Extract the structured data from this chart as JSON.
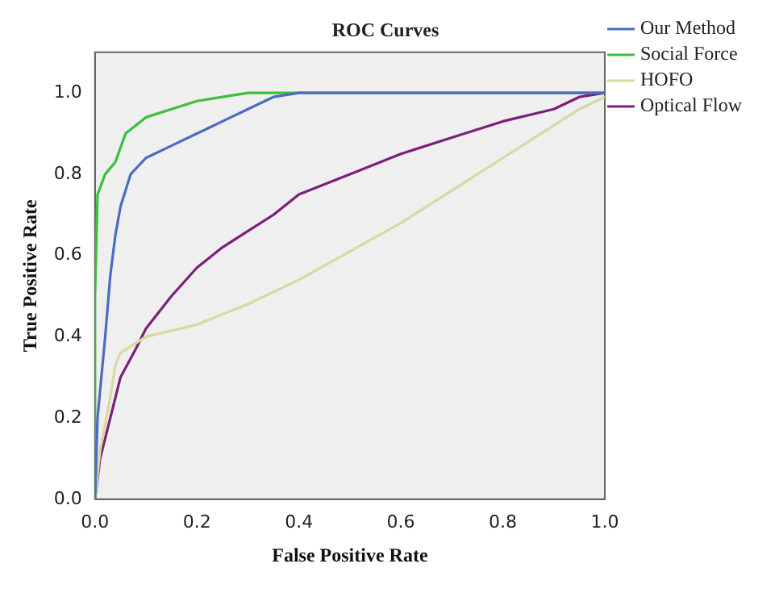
{
  "chart_data": {
    "type": "line",
    "title": "ROC Curves",
    "xlabel": "False Positive Rate",
    "ylabel": "True Positive Rate",
    "xlim": [
      0,
      1
    ],
    "ylim": [
      0,
      1.1
    ],
    "xticks": [
      {
        "value": 0,
        "label": "0.0"
      },
      0.2,
      0.4,
      0.6,
      0.8,
      {
        "value": 1,
        "label": "1.0"
      }
    ],
    "yticks": [
      {
        "value": 0,
        "label": "0.0"
      },
      0.2,
      0.4,
      0.6,
      0.8,
      {
        "value": 1,
        "label": "1.0"
      }
    ],
    "grid": false,
    "legend": "right",
    "marker": "none",
    "line_style": "solid",
    "series": [
      {
        "name": "Our Method",
        "color": "#4a6cc0",
        "x": [
          0,
          0.005,
          0.02,
          0.03,
          0.04,
          0.05,
          0.07,
          0.1,
          0.15,
          0.2,
          0.25,
          0.3,
          0.35,
          0.4,
          1
        ],
        "values": [
          0,
          0.2,
          0.4,
          0.55,
          0.65,
          0.72,
          0.8,
          0.84,
          0.87,
          0.9,
          0.93,
          0.96,
          0.99,
          1,
          1
        ]
      },
      {
        "name": "Social Force",
        "color": "#3cbf3c",
        "x": [
          0,
          0,
          0.005,
          0.02,
          0.04,
          0.06,
          0.1,
          0.15,
          0.2,
          0.3,
          1
        ],
        "values": [
          0,
          0.5,
          0.75,
          0.8,
          0.83,
          0.9,
          0.94,
          0.96,
          0.98,
          1,
          1
        ]
      },
      {
        "name": "HOFO",
        "color": "#d8d8a0",
        "x": [
          0,
          0.01,
          0.03,
          0.04,
          0.05,
          0.1,
          0.2,
          0.3,
          0.4,
          0.5,
          0.6,
          0.7,
          0.8,
          0.9,
          0.95,
          1
        ],
        "values": [
          0,
          0.12,
          0.25,
          0.33,
          0.36,
          0.4,
          0.43,
          0.48,
          0.54,
          0.61,
          0.68,
          0.76,
          0.84,
          0.92,
          0.96,
          0.99
        ]
      },
      {
        "name": "Optical Flow",
        "color": "#7b1f7b",
        "x": [
          0,
          0.01,
          0.03,
          0.05,
          0.08,
          0.1,
          0.15,
          0.2,
          0.25,
          0.3,
          0.35,
          0.4,
          0.5,
          0.6,
          0.7,
          0.8,
          0.9,
          0.95,
          1
        ],
        "values": [
          0,
          0.1,
          0.2,
          0.3,
          0.37,
          0.42,
          0.5,
          0.57,
          0.62,
          0.66,
          0.7,
          0.75,
          0.8,
          0.85,
          0.89,
          0.93,
          0.96,
          0.99,
          1
        ]
      }
    ]
  }
}
